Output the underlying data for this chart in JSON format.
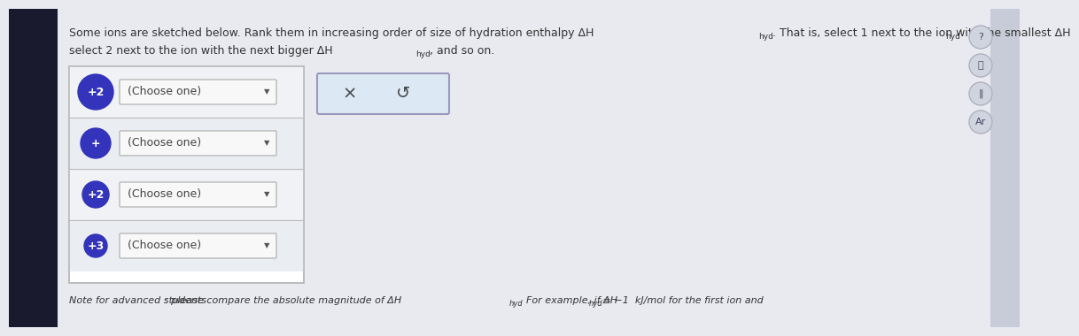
{
  "bg_main": "#e8eaf0",
  "bg_left_sidebar": "#1a1a2e",
  "bg_right_sidebar": "#c8ccd8",
  "circle_color": "#3333bb",
  "circle_text_color": "#ffffff",
  "box_bg": "#ffffff",
  "box_border": "#bbbbbb",
  "dropdown_bg": "#f8f8f8",
  "dropdown_border": "#aaaaaa",
  "reset_box_bg": "#dde8f5",
  "reset_box_border": "#9999bb",
  "ions": [
    {
      "charge": "+2"
    },
    {
      "charge": "+"
    },
    {
      "charge": "+2"
    },
    {
      "charge": "+3"
    }
  ],
  "circle_radii_display": [
    20,
    17,
    15,
    13
  ],
  "dropdown_text": "(Choose one)",
  "reset_symbols": [
    "x",
    "↺"
  ],
  "title_line1a": "Some ions are sketched below. Rank them in increasing order of size of hydration enthalpy ΔH",
  "title_line1a_sub": "hyd",
  "title_line1b": ". That is, select 1 next to the ion with the smallest ΔH",
  "title_line1b_sub": "hyd",
  "title_line1b_end": "'",
  "title_line2a": "select 2 next to the ion with the next bigger ΔH",
  "title_line2a_sub": "hyd",
  "title_line2a_end": ", and so on.",
  "note_a": "Note for advanced students",
  "note_b": ": please compare the absolute magnitude of ΔH",
  "note_b_sub": "hyd",
  "note_c": ". For example, if ΔH",
  "note_c_sub": "hyd",
  "note_d": " = −1  kJ/mol for the first ion and",
  "font_size_title": 9,
  "font_size_note": 8,
  "font_size_dropdown": 9,
  "font_size_ion": 9,
  "icon_labels": [
    "?",
    "⌹",
    "‖",
    "Ar"
  ],
  "icon_bg": "#d0d4de",
  "icon_border": "#aaaabb"
}
